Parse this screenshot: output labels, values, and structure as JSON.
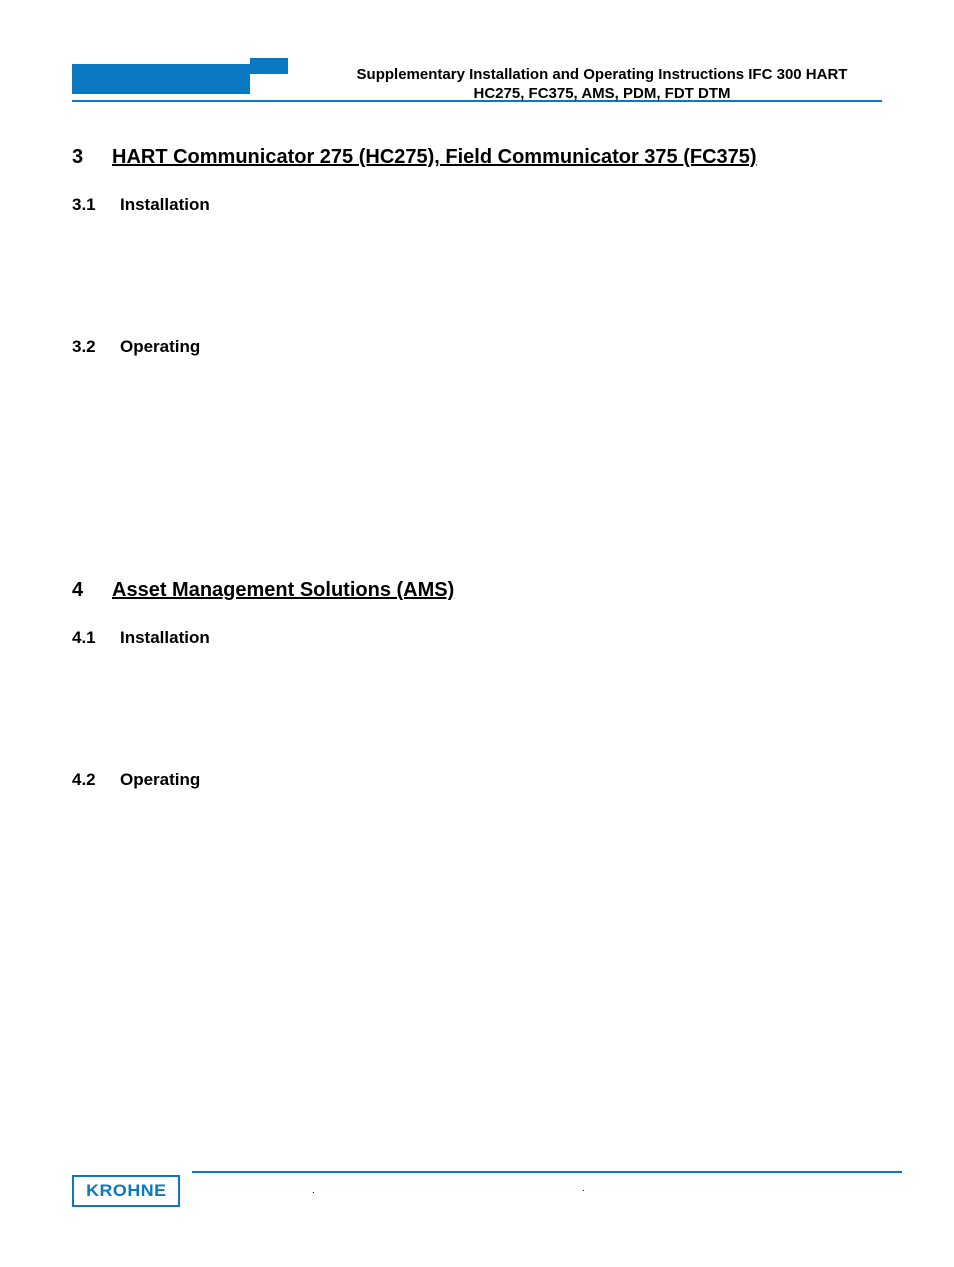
{
  "colors": {
    "accent": "#0b79c1",
    "text": "#000000",
    "background": "#ffffff"
  },
  "header": {
    "line1": "Supplementary Installation and Operating Instructions IFC 300 HART",
    "line2": "HC275, FC375, AMS, PDM, FDT DTM"
  },
  "sections": [
    {
      "number": "3",
      "title": "HART Communicator 275 (HC275), Field Communicator 375 (FC375)",
      "subsections": [
        {
          "number": "3.1",
          "title": "Installation"
        },
        {
          "number": "3.2",
          "title": "Operating"
        }
      ]
    },
    {
      "number": "4",
      "title": "Asset Management Solutions (AMS)",
      "subsections": [
        {
          "number": "4.1",
          "title": "Installation"
        },
        {
          "number": "4.2",
          "title": "Operating"
        }
      ]
    }
  ],
  "footer": {
    "logo": "KROHNE",
    "left_dot": ".",
    "right_dot": "."
  },
  "typography": {
    "header_fontsize": 15,
    "section_fontsize": 20,
    "subsection_fontsize": 17,
    "footer_fontsize": 10,
    "logo_fontsize": 17
  }
}
